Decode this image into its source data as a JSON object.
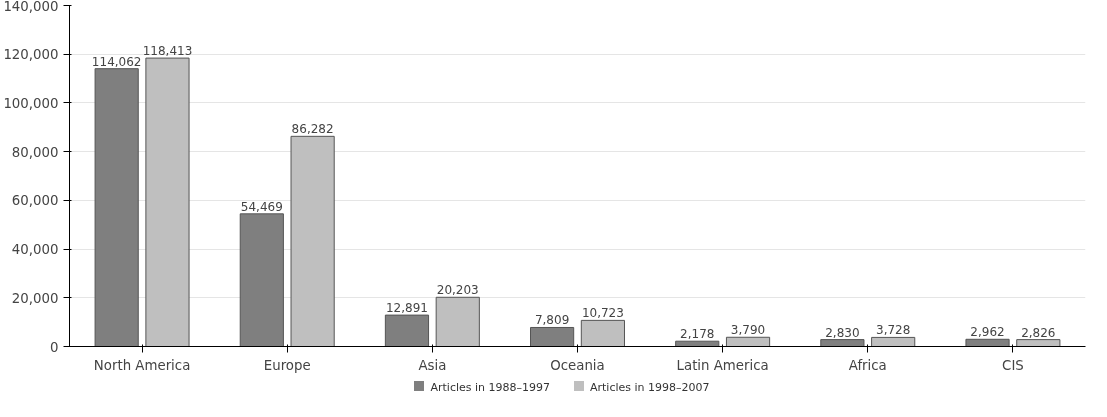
{
  "chart_data": {
    "type": "bar",
    "categories": [
      "North America",
      "Europe",
      "Asia",
      "Oceania",
      "Latin America",
      "Africa",
      "CIS"
    ],
    "series": [
      {
        "name": "Articles in 1988–1997",
        "color": "#7f7f7f",
        "values": [
          114062,
          54469,
          12891,
          7809,
          2178,
          2830,
          2962
        ],
        "value_labels": [
          "114,062",
          "54,469",
          "12,891",
          "7,809",
          "2,178",
          "2,830",
          "2,962"
        ]
      },
      {
        "name": "Articles in 1998–2007",
        "color": "#bfbfbf",
        "values": [
          118413,
          86282,
          20203,
          10723,
          3790,
          3728,
          2826
        ],
        "value_labels": [
          "118,413",
          "86,282",
          "20,203",
          "10,723",
          "3,790",
          "3,728",
          "2,826"
        ]
      }
    ],
    "ylim": [
      0,
      140000
    ],
    "yticks": [
      {
        "value": 0,
        "label": "0"
      },
      {
        "value": 20000,
        "label": "20,000"
      },
      {
        "value": 40000,
        "label": "40,000"
      },
      {
        "value": 60000,
        "label": "60,000"
      },
      {
        "value": 80000,
        "label": "80,000"
      },
      {
        "value": 100000,
        "label": "100,000"
      },
      {
        "value": 120000,
        "label": "120,000"
      },
      {
        "value": 140000,
        "label": "140,000"
      }
    ],
    "grid": "y",
    "legend": "bottom"
  }
}
